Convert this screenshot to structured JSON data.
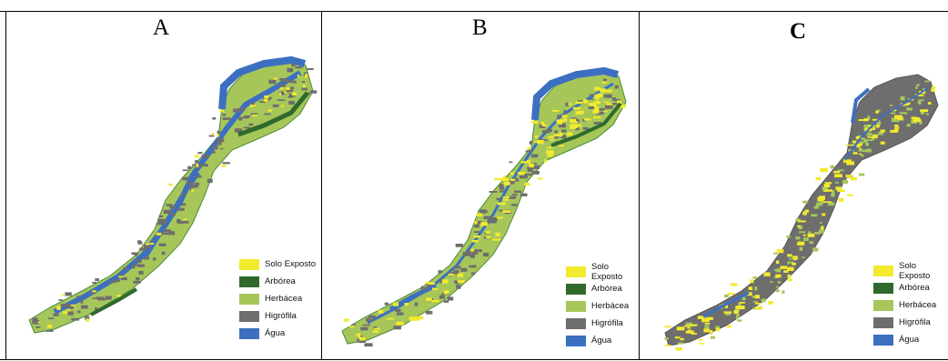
{
  "panels": [
    {
      "id": "A",
      "label": "A"
    },
    {
      "id": "B",
      "label": "B"
    },
    {
      "id": "C",
      "label": "C"
    }
  ],
  "legend": [
    {
      "label": "Solo Exposto",
      "color": "#f2ea2e"
    },
    {
      "label": "Arbórea",
      "color": "#2f6a2c"
    },
    {
      "label": "Herbácea",
      "color": "#a6c65a"
    },
    {
      "label": "Higrófila",
      "color": "#6e6e6e"
    },
    {
      "label": "Água",
      "color": "#3c6fc0"
    }
  ],
  "panel_mix": {
    "A": {
      "dominant": "Herbácea",
      "secondary": "Água"
    },
    "B": {
      "dominant": "Herbácea",
      "secondary": "Solo Exposto"
    },
    "C": {
      "dominant": "Higrófila",
      "secondary": "Solo Exposto"
    }
  }
}
